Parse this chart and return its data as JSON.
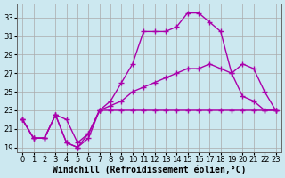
{
  "background_color": "#cce8f0",
  "grid_color": "#aaaaaa",
  "line_color": "#aa00aa",
  "marker_style": "+",
  "marker_size": 4,
  "line_width": 1.0,
  "xlabel": "Windchill (Refroidissement éolien,°C)",
  "xlabel_fontsize": 7,
  "tick_fontsize": 6,
  "xlim": [
    -0.5,
    23.5
  ],
  "ylim": [
    18.5,
    34.5
  ],
  "yticks": [
    19,
    21,
    23,
    25,
    27,
    29,
    31,
    33
  ],
  "xticks": [
    0,
    1,
    2,
    3,
    4,
    5,
    6,
    7,
    8,
    9,
    10,
    11,
    12,
    13,
    14,
    15,
    16,
    17,
    18,
    19,
    20,
    21,
    22,
    23
  ],
  "line1_x": [
    0,
    1,
    2,
    3,
    4,
    5,
    6,
    7,
    8,
    9,
    10,
    11,
    12,
    13,
    14,
    15,
    16,
    17,
    18,
    19,
    20,
    21,
    22,
    23
  ],
  "line1_y": [
    22,
    20,
    20,
    22.5,
    22,
    19.5,
    20.5,
    23,
    23,
    23,
    23,
    23,
    23,
    23,
    23,
    23,
    23,
    23,
    23,
    23,
    23,
    23,
    23,
    23
  ],
  "line2_x": [
    0,
    1,
    2,
    3,
    4,
    5,
    6,
    7,
    8,
    9,
    10,
    11,
    12,
    13,
    14,
    15,
    16,
    17,
    18,
    19,
    20,
    21,
    22,
    23
  ],
  "line2_y": [
    22,
    20,
    20,
    22.5,
    19.5,
    19,
    20,
    23,
    23.5,
    24,
    25,
    25.5,
    26,
    26.5,
    27,
    27.5,
    27.5,
    28,
    27.5,
    27,
    28,
    27.5,
    25,
    23
  ],
  "line3_x": [
    0,
    1,
    2,
    3,
    4,
    5,
    6,
    7,
    8,
    9,
    10,
    11,
    12,
    13,
    14,
    15,
    16,
    17,
    18,
    19,
    20,
    21,
    22,
    23
  ],
  "line3_y": [
    22,
    20,
    20,
    22.5,
    19.5,
    19,
    20.5,
    23,
    24,
    26,
    28,
    31.5,
    31.5,
    31.5,
    32,
    33.5,
    33.5,
    32.5,
    31.5,
    27,
    24.5,
    24,
    23,
    23
  ]
}
